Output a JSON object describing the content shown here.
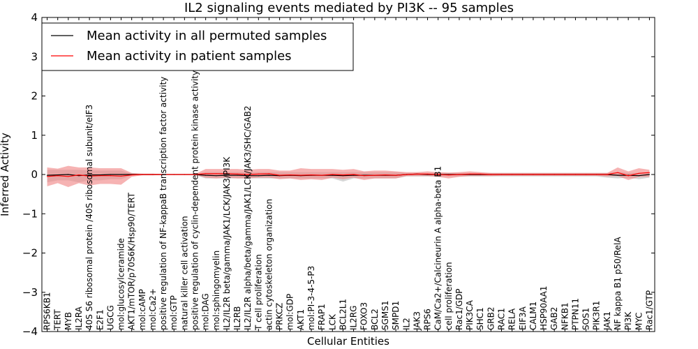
{
  "chart_data": {
    "type": "line",
    "title": "IL2 signaling events mediated by PI3K -- 95 samples",
    "xlabel": "Cellular Entities",
    "ylabel": "Inferred Activity",
    "ylim": [
      -4,
      4
    ],
    "yticks": [
      "4",
      "3",
      "2",
      "1",
      "0",
      "−1",
      "−2",
      "−3",
      "−4"
    ],
    "legend_position": "top-left",
    "colors": {
      "permuted_line": "#000000",
      "permuted_band": "#c8c8c8",
      "patient_line": "#ff0000",
      "patient_band": "#f08080"
    },
    "categories": [
      "RPS6KB1",
      "TERT",
      "MYB",
      "IL2RA",
      "40S S6 ribosomal protein /40S ribosomal subunit/eIF3",
      "E2F1",
      "UGCG",
      "mol:glucosylceramide",
      "AKT1/mTOR/p70S6K/Hsp90/TERT",
      "mol:cAMP",
      "mol:Ca2+",
      "positive regulation of NF-kappaB transcription factor activity",
      "mol:GTP",
      "natural killer cell activation",
      "positive regulation of cyclin-dependent protein kinase activity",
      "mol:DAG",
      "mol:sphingomyelin",
      "IL2/IL2R beta/gamma/JAK1/LCK/JAK3/PI3K",
      "IL2RB",
      "IL2/IL2R alpha/beta/gamma/JAK1/LCK/JAK3/SHC/GAB2",
      "T cell proliferation",
      "actin cytoskeleton organization",
      "PRKCZ",
      "mol:GDP",
      "AKT1",
      "mol:PI-3-4-5-P3",
      "FRAP1",
      "LCK",
      "BCL2L1",
      "IL2RG",
      "FOXO3",
      "BCL2",
      "SGMS1",
      "SMPD1",
      "IL2",
      "JAK3",
      "RPS6",
      "CaM/Ca2+/Calcineurin A alpha-beta B1",
      "cell proliferation",
      "Rac1/GDP",
      "PIK3CA",
      "SHC1",
      "GRB2",
      "RAC1",
      "RELA",
      "EIF3A",
      "CALM1",
      "HSP90AA1",
      "GAB2",
      "NFKB1",
      "PTPN11",
      "SOS1",
      "PIK3R1",
      "JAK1",
      "NF kappa B1 p50/RelA",
      "PI3K",
      "MYC",
      "Rac1/GTP"
    ],
    "series": [
      {
        "name": "Mean activity in all permuted samples",
        "values": [
          -0.02,
          -0.01,
          0.0,
          -0.03,
          -0.01,
          -0.01,
          0.0,
          0.0,
          0.0,
          0.0,
          0.0,
          0.0,
          0.0,
          0.0,
          0.0,
          -0.02,
          -0.03,
          -0.02,
          -0.02,
          -0.03,
          -0.03,
          -0.02,
          -0.03,
          -0.02,
          -0.03,
          -0.02,
          -0.02,
          -0.02,
          -0.03,
          -0.02,
          -0.02,
          -0.02,
          -0.02,
          -0.02,
          0.0,
          0.01,
          0.0,
          0.0,
          0.0,
          0.0,
          0.0,
          0.0,
          0.0,
          0.0,
          0.0,
          0.0,
          0.0,
          0.0,
          0.0,
          0.0,
          0.0,
          0.0,
          0.0,
          0.0,
          -0.02,
          -0.02,
          -0.03,
          0.0
        ],
        "band_low": [
          -0.2,
          -0.15,
          -0.15,
          -0.2,
          -0.15,
          -0.15,
          -0.12,
          -0.12,
          -0.02,
          -0.02,
          -0.02,
          -0.01,
          -0.01,
          -0.01,
          -0.01,
          -0.1,
          -0.1,
          -0.1,
          -0.1,
          -0.1,
          -0.1,
          -0.1,
          -0.1,
          -0.1,
          -0.1,
          -0.1,
          -0.1,
          -0.1,
          -0.18,
          -0.1,
          -0.1,
          -0.1,
          -0.1,
          -0.1,
          -0.05,
          -0.05,
          -0.05,
          -0.05,
          -0.05,
          -0.05,
          -0.05,
          -0.05,
          -0.05,
          -0.05,
          -0.05,
          -0.05,
          -0.05,
          -0.05,
          -0.05,
          -0.05,
          -0.05,
          -0.05,
          -0.05,
          -0.08,
          -0.1,
          -0.08,
          -0.12,
          -0.08
        ],
        "band_high": [
          0.12,
          0.12,
          0.12,
          0.12,
          0.1,
          0.1,
          0.1,
          0.1,
          0.02,
          0.02,
          0.02,
          0.01,
          0.01,
          0.01,
          0.01,
          0.06,
          0.06,
          0.06,
          0.06,
          0.06,
          0.06,
          0.06,
          0.06,
          0.06,
          0.06,
          0.06,
          0.06,
          0.06,
          0.06,
          0.06,
          0.06,
          0.06,
          0.06,
          0.06,
          0.04,
          0.04,
          0.04,
          0.04,
          0.04,
          0.04,
          0.04,
          0.04,
          0.04,
          0.04,
          0.04,
          0.04,
          0.04,
          0.04,
          0.04,
          0.04,
          0.04,
          0.04,
          0.04,
          0.04,
          0.06,
          0.04,
          0.04,
          0.06
        ]
      },
      {
        "name": "Mean activity in patient samples",
        "values": [
          -0.05,
          -0.03,
          -0.05,
          -0.01,
          -0.04,
          -0.03,
          -0.03,
          -0.04,
          -0.01,
          0.0,
          0.0,
          0.0,
          0.0,
          0.0,
          0.0,
          0.02,
          0.02,
          0.02,
          0.01,
          0.0,
          0.01,
          0.02,
          -0.02,
          -0.01,
          -0.02,
          -0.01,
          -0.02,
          0.0,
          -0.01,
          0.0,
          -0.03,
          -0.02,
          -0.01,
          -0.02,
          0.0,
          0.01,
          0.01,
          0.0,
          -0.01,
          0.0,
          0.01,
          0.01,
          0.0,
          0.0,
          0.0,
          0.0,
          0.0,
          0.0,
          0.0,
          0.0,
          0.0,
          0.0,
          0.0,
          0.0,
          0.05,
          -0.03,
          0.03,
          0.05
        ],
        "band_low": [
          -0.3,
          -0.22,
          -0.32,
          -0.22,
          -0.28,
          -0.24,
          -0.24,
          -0.26,
          -0.06,
          -0.02,
          -0.02,
          -0.01,
          -0.01,
          -0.01,
          -0.01,
          -0.08,
          -0.1,
          -0.08,
          -0.1,
          -0.1,
          -0.08,
          -0.08,
          -0.12,
          -0.1,
          -0.14,
          -0.12,
          -0.14,
          -0.08,
          -0.12,
          -0.08,
          -0.14,
          -0.1,
          -0.1,
          -0.1,
          -0.04,
          -0.04,
          -0.04,
          -0.06,
          -0.1,
          -0.06,
          -0.04,
          -0.04,
          -0.04,
          -0.03,
          -0.03,
          -0.03,
          -0.03,
          -0.03,
          -0.03,
          -0.03,
          -0.03,
          -0.03,
          -0.03,
          -0.05,
          -0.04,
          -0.14,
          -0.06,
          -0.06
        ],
        "band_high": [
          0.18,
          0.15,
          0.22,
          0.18,
          0.18,
          0.16,
          0.16,
          0.16,
          0.04,
          0.02,
          0.02,
          0.01,
          0.01,
          0.01,
          0.01,
          0.14,
          0.14,
          0.14,
          0.14,
          0.12,
          0.14,
          0.14,
          0.1,
          0.1,
          0.16,
          0.14,
          0.14,
          0.14,
          0.12,
          0.14,
          0.08,
          0.1,
          0.1,
          0.08,
          0.06,
          0.06,
          0.08,
          0.06,
          0.05,
          0.06,
          0.08,
          0.06,
          0.04,
          0.04,
          0.04,
          0.04,
          0.04,
          0.04,
          0.04,
          0.04,
          0.04,
          0.04,
          0.04,
          0.04,
          0.18,
          0.08,
          0.16,
          0.12
        ]
      }
    ]
  }
}
